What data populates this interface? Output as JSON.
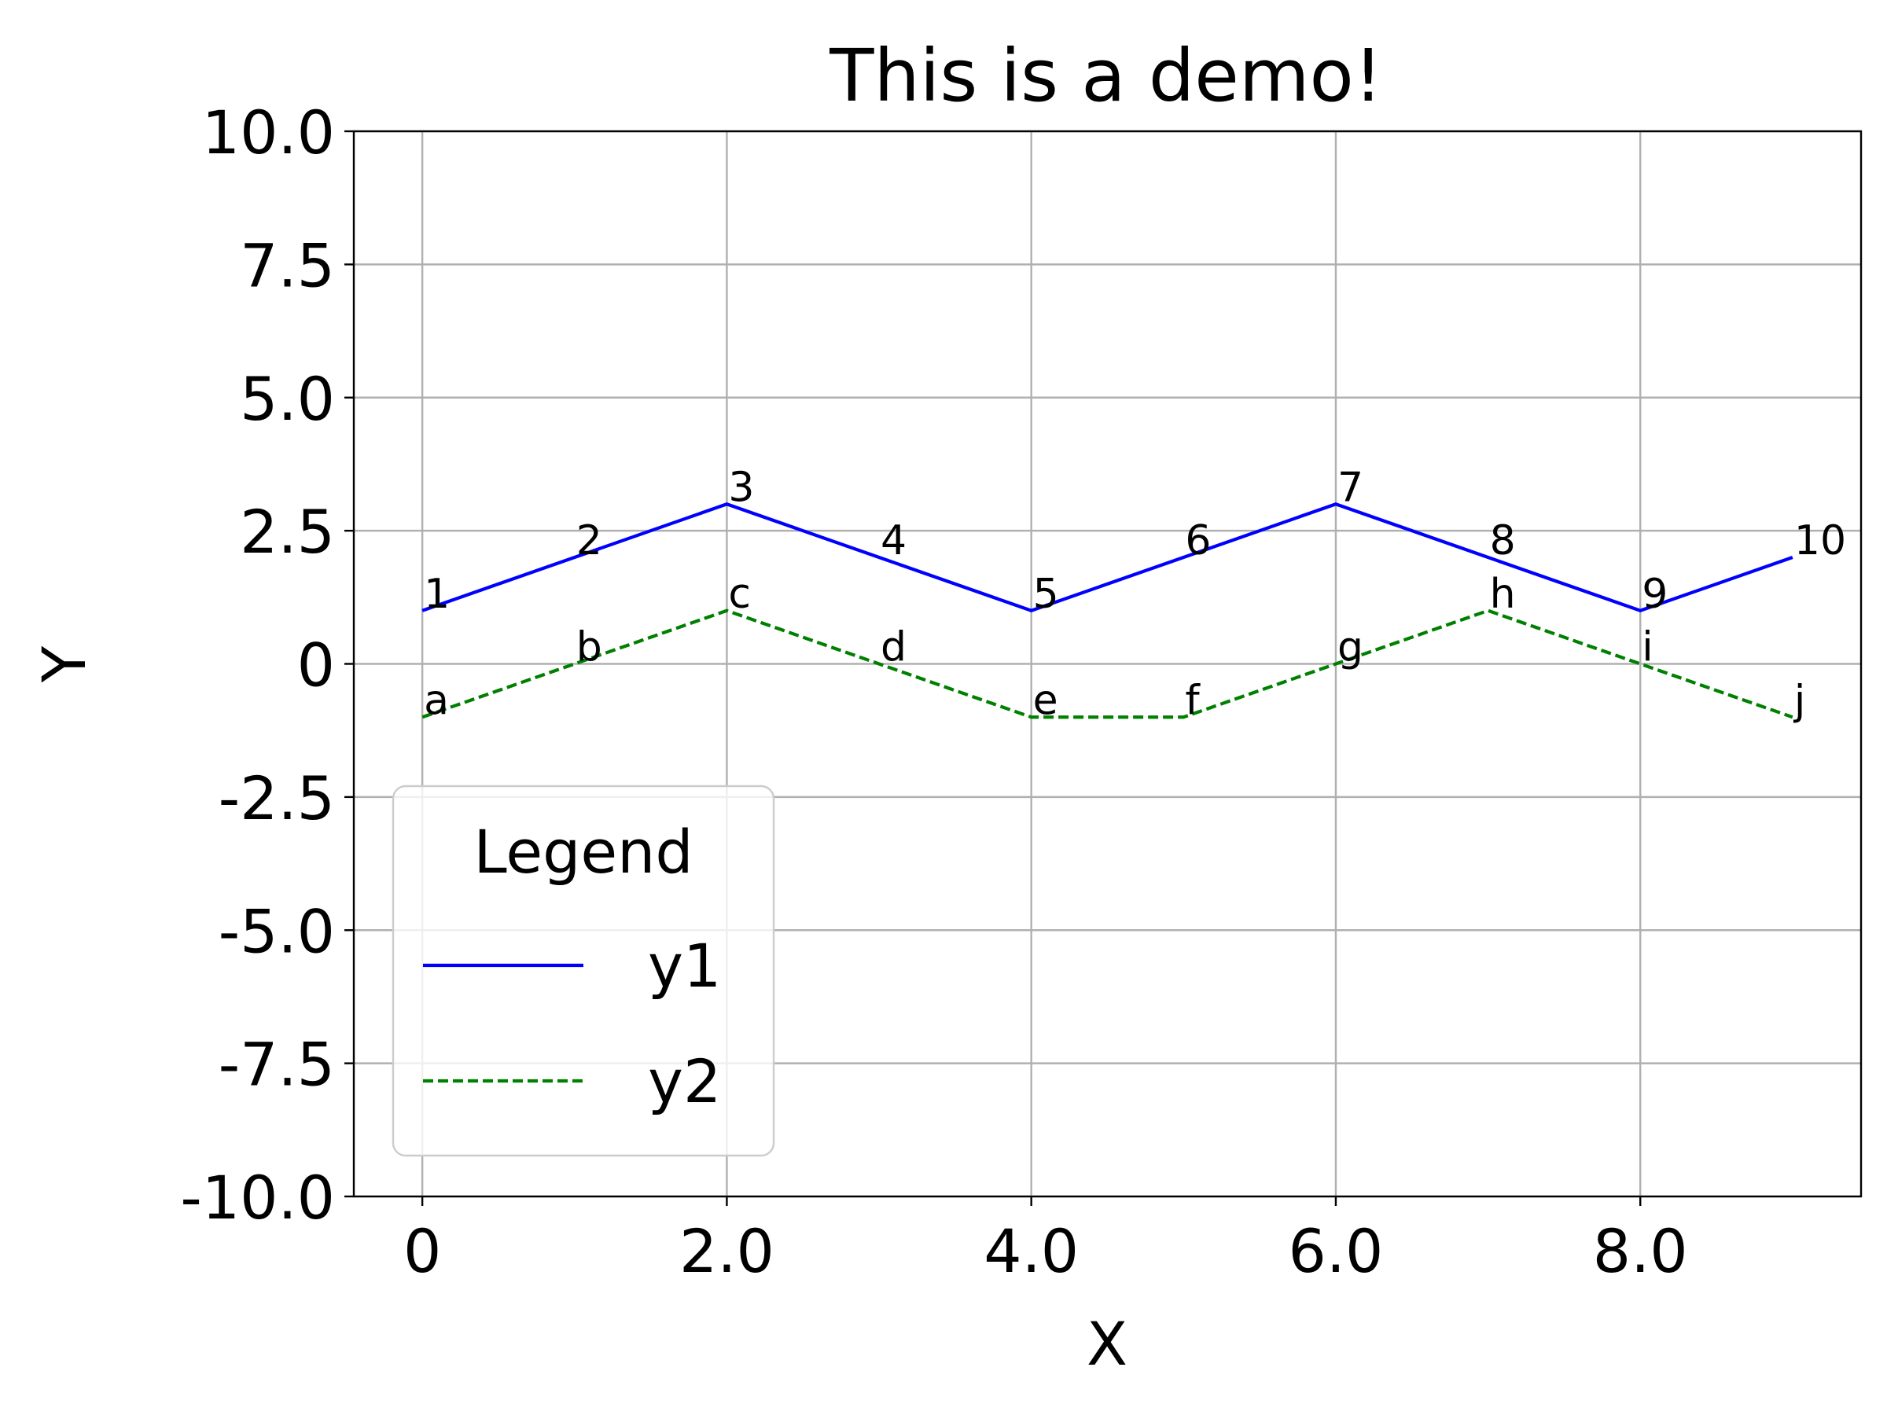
{
  "chart_data": {
    "type": "line",
    "title": "This is a demo!",
    "xlabel": "X",
    "ylabel": "Y",
    "x": [
      0,
      1,
      2,
      3,
      4,
      5,
      6,
      7,
      8,
      9
    ],
    "xlim": [
      -0.45,
      9.45
    ],
    "ylim": [
      -10,
      10
    ],
    "x_ticks": [
      0,
      2,
      4,
      6,
      8
    ],
    "x_tick_labels": [
      "0",
      "2.0",
      "4.0",
      "6.0",
      "8.0"
    ],
    "y_ticks": [
      -10,
      -7.5,
      -5,
      -2.5,
      0,
      2.5,
      5,
      7.5,
      10
    ],
    "y_tick_labels": [
      "-10.0",
      "-7.5",
      "-5.0",
      "-2.5",
      "0",
      "2.5",
      "5.0",
      "7.5",
      "10.0"
    ],
    "grid": true,
    "legend": {
      "title": "Legend",
      "placement": "lower-left"
    },
    "series": [
      {
        "name": "y1",
        "color": "#0000ff",
        "style": "solid",
        "values": [
          1,
          2,
          3,
          2,
          1,
          2,
          3,
          2,
          1,
          2
        ],
        "point_labels": [
          "1",
          "2",
          "3",
          "4",
          "5",
          "6",
          "7",
          "8",
          "9",
          "10"
        ]
      },
      {
        "name": "y2",
        "color": "#008000",
        "style": "dashed",
        "values": [
          -1,
          0,
          1,
          0,
          -1,
          -1,
          0,
          1,
          0,
          -1
        ],
        "point_labels": [
          "a",
          "b",
          "c",
          "d",
          "e",
          "f",
          "g",
          "h",
          "i",
          "j"
        ]
      }
    ]
  }
}
